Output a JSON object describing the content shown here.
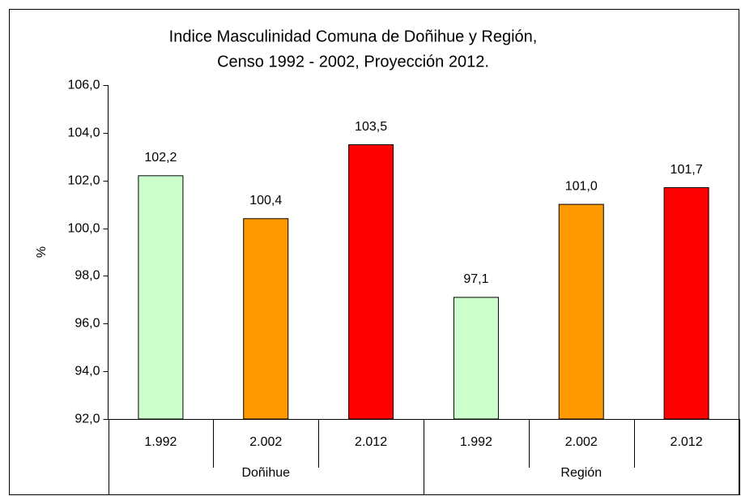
{
  "chart_data": {
    "type": "bar",
    "title": [
      "Indice Masculinidad Comuna de Doñihue y Región,",
      "Censo 1992 - 2002, Proyección 2012."
    ],
    "y_label": "%",
    "categories": [
      "1.992",
      "2.002",
      "2.012",
      "1.992",
      "2.002",
      "2.012"
    ],
    "groups": [
      "Doñihue",
      "Región"
    ],
    "values": [
      102.2,
      100.4,
      103.5,
      97.1,
      101.0,
      101.7
    ],
    "value_labels": [
      "102,2",
      "100,4",
      "103,5",
      "97,1",
      "101,0",
      "101,7"
    ],
    "colors": [
      "#ccffcc",
      "#ff9900",
      "#ff0000",
      "#ccffcc",
      "#ff9900",
      "#ff0000"
    ],
    "ylim": [
      92,
      106
    ],
    "yticks": [
      {
        "value": 92,
        "label": "92,0"
      },
      {
        "value": 94,
        "label": "94,0"
      },
      {
        "value": 96,
        "label": "96,0"
      },
      {
        "value": 98,
        "label": "98,0"
      },
      {
        "value": 100,
        "label": "100,0"
      },
      {
        "value": 102,
        "label": "102,0"
      },
      {
        "value": 104,
        "label": "104,0"
      },
      {
        "value": 106,
        "label": "106,0"
      }
    ],
    "grid": false
  }
}
